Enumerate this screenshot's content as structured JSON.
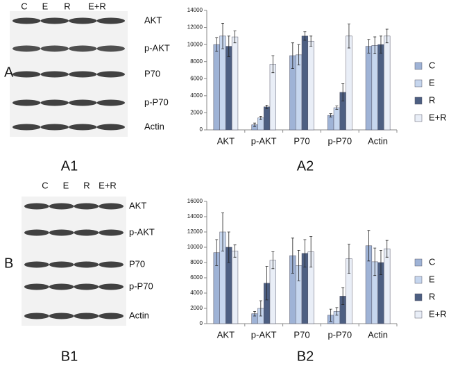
{
  "panels": [
    {
      "label": "A",
      "caption": "A1",
      "lanes": [
        "C",
        "E",
        "R",
        "E+R"
      ],
      "rows": [
        "AKT",
        "p-AKT",
        "P70",
        "p-P70",
        "Actin"
      ]
    },
    {
      "label": "B",
      "caption": "B1",
      "lanes": [
        "C",
        "E",
        "R",
        "E+R"
      ],
      "rows": [
        "AKT",
        "p-AKT",
        "P70",
        "p-P70",
        "Actin"
      ]
    }
  ],
  "chart_data": [
    {
      "type": "bar",
      "caption": "A2",
      "categories": [
        "AKT",
        "p-AKT",
        "P70",
        "p-P70",
        "Actin"
      ],
      "ylim": [
        0,
        14000
      ],
      "yticks": [
        0,
        2000,
        4000,
        6000,
        8000,
        10000,
        12000,
        14000
      ],
      "series": [
        {
          "name": "C",
          "color": "#9fb3d6",
          "values": [
            10000,
            600,
            8700,
            1700,
            9800
          ],
          "errors": [
            800,
            200,
            1500,
            200,
            800
          ]
        },
        {
          "name": "E",
          "color": "#c6d6ee",
          "values": [
            11000,
            1400,
            8800,
            2600,
            9900
          ],
          "errors": [
            1500,
            200,
            1200,
            200,
            1000
          ]
        },
        {
          "name": "R",
          "color": "#4d5f82",
          "values": [
            9800,
            2700,
            11000,
            4400,
            10000
          ],
          "errors": [
            1200,
            200,
            500,
            1000,
            1000
          ]
        },
        {
          "name": "E+R",
          "color": "#e9eef7",
          "values": [
            10900,
            7700,
            10400,
            11000,
            11000
          ],
          "errors": [
            700,
            1000,
            600,
            1400,
            800
          ]
        }
      ]
    },
    {
      "type": "bar",
      "caption": "B2",
      "categories": [
        "AKT",
        "p-AKT",
        "P70",
        "p-P70",
        "Actin"
      ],
      "ylim": [
        0,
        16000
      ],
      "yticks": [
        0,
        2000,
        4000,
        6000,
        8000,
        10000,
        12000,
        14000,
        16000
      ],
      "series": [
        {
          "name": "C",
          "color": "#9fb3d6",
          "values": [
            9300,
            1300,
            8900,
            1100,
            10200
          ],
          "errors": [
            1700,
            300,
            2300,
            800,
            2000
          ]
        },
        {
          "name": "E",
          "color": "#c6d6ee",
          "values": [
            12000,
            2000,
            7600,
            1600,
            8100
          ],
          "errors": [
            2500,
            1000,
            2000,
            500,
            1800
          ]
        },
        {
          "name": "R",
          "color": "#4d5f82",
          "values": [
            10000,
            5300,
            9200,
            3600,
            8000
          ],
          "errors": [
            2000,
            2200,
            1800,
            1100,
            1600
          ]
        },
        {
          "name": "E+R",
          "color": "#e9eef7",
          "values": [
            9500,
            8300,
            9400,
            8500,
            9800
          ],
          "errors": [
            800,
            1100,
            2000,
            1900,
            1100
          ]
        }
      ]
    }
  ]
}
